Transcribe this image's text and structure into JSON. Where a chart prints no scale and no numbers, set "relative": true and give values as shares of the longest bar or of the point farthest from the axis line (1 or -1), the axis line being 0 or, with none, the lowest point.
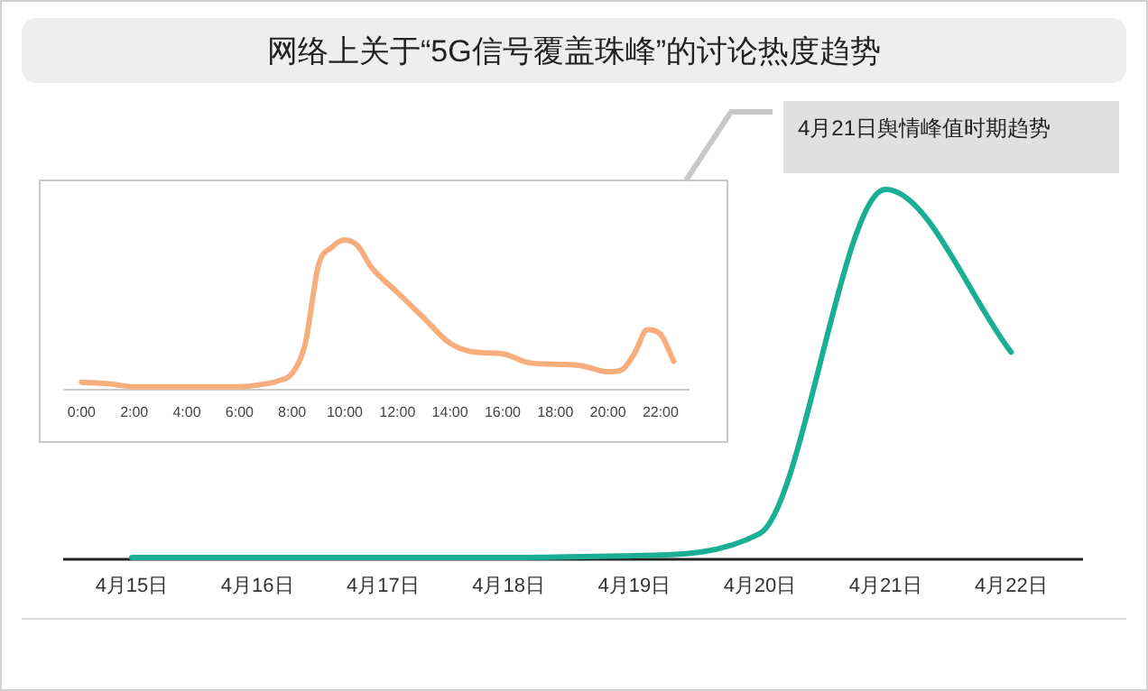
{
  "chart_data": [
    {
      "type": "line",
      "title": "网络上关于“5G信号覆盖珠峰”的讨论热度趋势",
      "categories": [
        "4月15日",
        "4月16日",
        "4月17日",
        "4月18日",
        "4月19日",
        "4月20日",
        "4月21日",
        "4月22日"
      ],
      "relative": true,
      "annotations": [
        "4月21日舆情峰值时期趋势"
      ],
      "series": [
        {
          "color": "#1aae94",
          "values": [
            0.005,
            0.005,
            0.005,
            0.005,
            0.01,
            0.07,
            1,
            0.56
          ]
        }
      ]
    },
    {
      "type": "line",
      "relative": true,
      "xlim": [
        -0.7,
        23.1
      ],
      "xticks": [
        {
          "value": 0,
          "label": "0:00"
        },
        {
          "value": 2,
          "label": "2:00"
        },
        {
          "value": 4,
          "label": "4:00"
        },
        {
          "value": 6,
          "label": "6:00"
        },
        {
          "value": 8,
          "label": "8:00"
        },
        {
          "value": 10,
          "label": "10:00"
        },
        {
          "value": 12,
          "label": "12:00"
        },
        {
          "value": 14,
          "label": "14:00"
        },
        {
          "value": 16,
          "label": "16:00"
        },
        {
          "value": 18,
          "label": "18:00"
        },
        {
          "value": 20,
          "label": "20:00"
        },
        {
          "value": 22,
          "label": "22:00"
        }
      ],
      "x": [
        0,
        1,
        2,
        3,
        4,
        5,
        6,
        7,
        7.5,
        8,
        8.5,
        9,
        9.5,
        10,
        10.5,
        11,
        12,
        13,
        14,
        15,
        16,
        17,
        18,
        19,
        20,
        20.5,
        21,
        21.5,
        22,
        22.5
      ],
      "series": [
        {
          "color": "#f8ad7c",
          "values": [
            0.05,
            0.04,
            0.02,
            0.02,
            0.02,
            0.02,
            0.02,
            0.04,
            0.06,
            0.11,
            0.31,
            0.83,
            0.95,
            1,
            0.96,
            0.82,
            0.65,
            0.48,
            0.31,
            0.25,
            0.24,
            0.18,
            0.17,
            0.16,
            0.12,
            0.13,
            0.24,
            0.4,
            0.37,
            0.19
          ]
        }
      ]
    }
  ]
}
